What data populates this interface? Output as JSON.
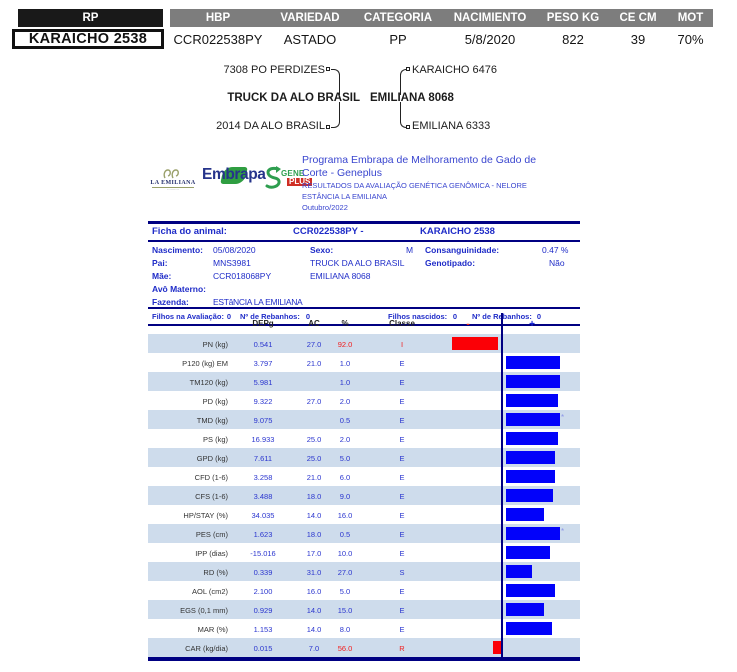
{
  "top_table": {
    "rp_header": "RP",
    "headers": [
      "HBP",
      "VARIEDAD",
      "CATEGORIA",
      "NACIMIENTO",
      "PESO KG",
      "CE CM",
      "MOT"
    ],
    "rp_value": "KARAICHO 2538",
    "values": [
      "CCR022538PY",
      "ASTADO",
      "PP",
      "5/8/2020",
      "822",
      "39",
      "70%"
    ]
  },
  "pedigree": {
    "sire": {
      "name": "TRUCK DA ALO BRASIL",
      "sire": "7308 PO PERDIZES",
      "dam": "2014 DA ALO BRASIL"
    },
    "dam": {
      "name": "EMILIANA 8068",
      "sire": "KARAICHO 6476",
      "dam": "EMILIANA 6333"
    }
  },
  "brand": {
    "la_emiliana_label": "LA EMILIANA",
    "embrapa_label": "Embrapa",
    "geneplus_gene": "GENE",
    "geneplus_plus": "PLUS",
    "title_line1": "Programa Embrapa de Melhoramento de Gado de",
    "title_line2": "Corte - Geneplus",
    "subtitle": "RESULTADOS DA AVALIAÇÃO GENÉTICA GENÔMICA - NELORE",
    "estancia": "ESTÂNCIA LA EMILIANA",
    "issue_date": "Outubro/2022"
  },
  "ficha": {
    "title_label": "Ficha do animal:",
    "animal_id": "CCR022538PY -",
    "animal_name": "KARAICHO 2538",
    "nascimento_label": "Nascimento:",
    "nascimento": "05/08/2020",
    "sexo_label": "Sexo:",
    "sexo": "M",
    "consanguinidade_label": "Consanguinidade:",
    "consanguinidade": "0.47 %",
    "pai_label": "Pai:",
    "pai_id": "MNS3981",
    "pai_nome": "TRUCK DA ALO BRASIL",
    "genotipado_label": "Genotipado:",
    "genotipado": "Não",
    "mae_label": "Mãe:",
    "mae_id": "CCR018068PY",
    "mae_nome": "EMILIANA 8068",
    "avo_materno_label": "Avô Materno:",
    "fazenda_label": "Fazenda:",
    "fazenda": "ESTâNCIA LA EMILIANA",
    "filhos_avaliacao_label": "Filhos na Avaliação:",
    "filhos_avaliacao": "0",
    "rebanhos1_label": "Nº de Rebanhos:",
    "rebanhos1": "0",
    "filhos_nascidos_label": "Filhos nascidos:",
    "filhos_nascidos": "0",
    "rebanhos2_label": "Nº de Rebanhos:",
    "rebanhos2": "0"
  },
  "dep_table": {
    "col_depg": "DEPg",
    "col_ac": "AC",
    "col_pct": "%",
    "col_classe": "Classe",
    "col_minus": "-",
    "col_plus": "+",
    "colors": {
      "positive_bar": "#0202fa",
      "negative_bar": "#fb0006",
      "stripe": "#cedcec",
      "navy": "#000082"
    },
    "rows": [
      {
        "trait": "PN (kg)",
        "depg": "0.541",
        "ac": "27.0",
        "pct": "92.0",
        "classe": "I",
        "pct_red": true,
        "classe_red": true,
        "bar_side": "left",
        "bar_len": 46,
        "bar_gap": 4
      },
      {
        "trait": "P120 (kg) EM",
        "depg": "3.797",
        "ac": "21.0",
        "pct": "1.0",
        "classe": "E",
        "pct_red": false,
        "classe_red": false,
        "bar_side": "right",
        "bar_len": 54
      },
      {
        "trait": "TM120 (kg)",
        "depg": "5.981",
        "ac": "",
        "pct": "1.0",
        "classe": "E",
        "pct_red": false,
        "classe_red": false,
        "bar_side": "right",
        "bar_len": 54
      },
      {
        "trait": "PD (kg)",
        "depg": "9.322",
        "ac": "27.0",
        "pct": "2.0",
        "classe": "E",
        "pct_red": false,
        "classe_red": false,
        "bar_side": "right",
        "bar_len": 52
      },
      {
        "trait": "TMD (kg)",
        "depg": "9.075",
        "ac": "",
        "pct": "0.5",
        "classe": "E",
        "pct_red": false,
        "classe_red": false,
        "bar_side": "right",
        "bar_len": 54,
        "marker": "*"
      },
      {
        "trait": "PS (kg)",
        "depg": "16.933",
        "ac": "25.0",
        "pct": "2.0",
        "classe": "E",
        "pct_red": false,
        "classe_red": false,
        "bar_side": "right",
        "bar_len": 52
      },
      {
        "trait": "GPD (kg)",
        "depg": "7.611",
        "ac": "25.0",
        "pct": "5.0",
        "classe": "E",
        "pct_red": false,
        "classe_red": false,
        "bar_side": "right",
        "bar_len": 49
      },
      {
        "trait": "CFD (1-6)",
        "depg": "3.258",
        "ac": "21.0",
        "pct": "6.0",
        "classe": "E",
        "pct_red": false,
        "classe_red": false,
        "bar_side": "right",
        "bar_len": 49
      },
      {
        "trait": "CFS (1-6)",
        "depg": "3.488",
        "ac": "18.0",
        "pct": "9.0",
        "classe": "E",
        "pct_red": false,
        "classe_red": false,
        "bar_side": "right",
        "bar_len": 47
      },
      {
        "trait": "HP/STAY (%)",
        "depg": "34.035",
        "ac": "14.0",
        "pct": "16.0",
        "classe": "E",
        "pct_red": false,
        "classe_red": false,
        "bar_side": "right",
        "bar_len": 38
      },
      {
        "trait": "PES (cm)",
        "depg": "1.623",
        "ac": "18.0",
        "pct": "0.5",
        "classe": "E",
        "pct_red": false,
        "classe_red": false,
        "bar_side": "right",
        "bar_len": 54,
        "marker": "*"
      },
      {
        "trait": "IPP (dias)",
        "depg": "-15.016",
        "ac": "17.0",
        "pct": "10.0",
        "classe": "E",
        "pct_red": false,
        "classe_red": false,
        "bar_side": "right",
        "bar_len": 44
      },
      {
        "trait": "RD (%)",
        "depg": "0.339",
        "ac": "31.0",
        "pct": "27.0",
        "classe": "S",
        "pct_red": false,
        "classe_red": false,
        "bar_side": "right",
        "bar_len": 26
      },
      {
        "trait": "AOL (cm2)",
        "depg": "2.100",
        "ac": "16.0",
        "pct": "5.0",
        "classe": "E",
        "pct_red": false,
        "classe_red": false,
        "bar_side": "right",
        "bar_len": 49
      },
      {
        "trait": "EGS (0,1 mm)",
        "depg": "0.929",
        "ac": "14.0",
        "pct": "15.0",
        "classe": "E",
        "pct_red": false,
        "classe_red": false,
        "bar_side": "right",
        "bar_len": 38
      },
      {
        "trait": "MAR (%)",
        "depg": "1.153",
        "ac": "14.0",
        "pct": "8.0",
        "classe": "E",
        "pct_red": false,
        "classe_red": false,
        "bar_side": "right",
        "bar_len": 46
      },
      {
        "trait": "CAR (kg/dia)",
        "depg": "0.015",
        "ac": "7.0",
        "pct": "56.0",
        "classe": "R",
        "pct_red": true,
        "classe_red": true,
        "bar_side": "left",
        "bar_len": 8,
        "bar_gap": 1
      }
    ]
  }
}
